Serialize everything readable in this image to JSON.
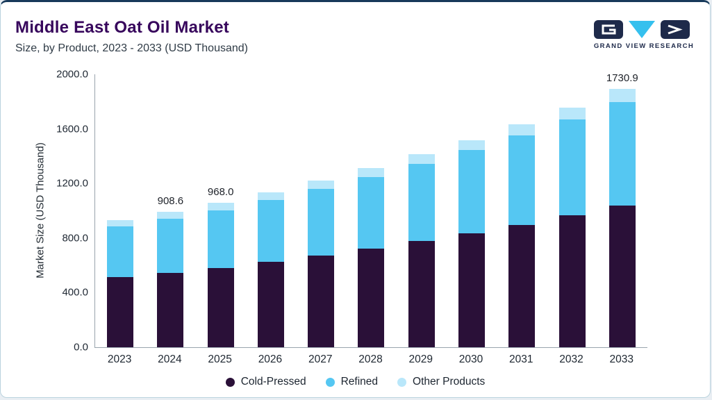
{
  "logo": {
    "text": "GRAND VIEW RESEARCH"
  },
  "colors": {
    "title": "#37065c",
    "logo_navy": "#1e2a4a",
    "logo_cyan": "#35c0ee",
    "card_top_line": "#17395a"
  },
  "chart_data": {
    "type": "bar",
    "stacked": true,
    "title": "Middle East Oat Oil Market",
    "subtitle": "Size, by Product, 2023 - 2033 (USD Thousand)",
    "ylabel": "Market Size (USD Thousand)",
    "ylim": [
      0,
      2000
    ],
    "yticks": [
      "0.0",
      "400.0",
      "800.0",
      "1200.0",
      "1600.0",
      "2000.0"
    ],
    "grid": false,
    "legend_position": "bottom",
    "categories": [
      "2023",
      "2024",
      "2025",
      "2026",
      "2027",
      "2028",
      "2029",
      "2030",
      "2031",
      "2032",
      "2033"
    ],
    "series": [
      {
        "name": "Cold-Pressed",
        "color": "#2a1038",
        "values": [
          469.4,
          499.8,
          532.4,
          572.0,
          614.9,
          661.1,
          711.2,
          764.5,
          821.7,
          883.3,
          952.0
        ]
      },
      {
        "name": "Refined",
        "color": "#55c7f2",
        "values": [
          341.4,
          363.4,
          387.2,
          416.0,
          447.2,
          480.8,
          517.2,
          556.0,
          597.6,
          642.4,
          692.4
        ]
      },
      {
        "name": "Other Products",
        "color": "#b9e7fa",
        "values": [
          42.7,
          45.4,
          48.4,
          52.0,
          55.9,
          60.1,
          64.7,
          69.5,
          74.7,
          80.3,
          86.5
        ]
      }
    ],
    "totals": [
      853.5,
      908.6,
      968.0,
      1040.0,
      1118.0,
      1202.0,
      1293.1,
      1390.0,
      1494.0,
      1606.0,
      1730.9
    ],
    "value_labels": [
      "",
      "908.6",
      "968.0",
      "",
      "",
      "",
      "",
      "",
      "",
      "",
      "1730.9"
    ]
  }
}
